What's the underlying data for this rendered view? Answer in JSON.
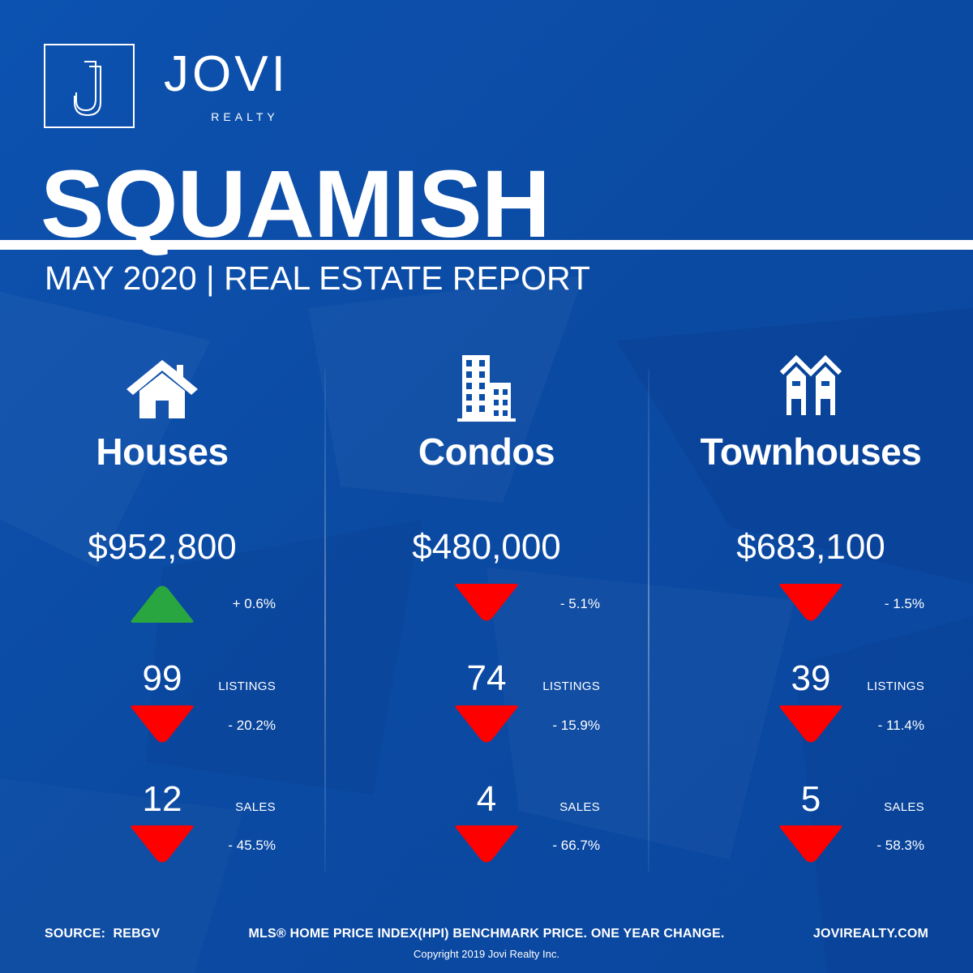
{
  "brand": {
    "name": "JOVI",
    "sub": "REALTY",
    "monogram": "J"
  },
  "title": "SQUAMISH",
  "subtitle": "MAY 2020 | REAL ESTATE REPORT",
  "colors": {
    "background": "#0d4fa8",
    "up": "#2aa640",
    "down": "#ff0000"
  },
  "columns": [
    {
      "icon": "house-icon",
      "label": "Houses",
      "price": "$952,800",
      "price_change": "+ 0.6%",
      "price_trend": "up",
      "listings": "99",
      "listings_label": "LISTINGS",
      "listings_change": "- 20.2%",
      "listings_trend": "down",
      "sales": "12",
      "sales_label": "SALES",
      "sales_change": "- 45.5%",
      "sales_trend": "down"
    },
    {
      "icon": "condo-building-icon",
      "label": "Condos",
      "price": "$480,000",
      "price_change": "- 5.1%",
      "price_trend": "down",
      "listings": "74",
      "listings_label": "LISTINGS",
      "listings_change": "- 15.9%",
      "listings_trend": "down",
      "sales": "4",
      "sales_label": "SALES",
      "sales_change": "- 66.7%",
      "sales_trend": "down"
    },
    {
      "icon": "townhouse-icon",
      "label": "Townhouses",
      "price": "$683,100",
      "price_change": "- 1.5%",
      "price_trend": "down",
      "listings": "39",
      "listings_label": "LISTINGS",
      "listings_change": "- 11.4%",
      "listings_trend": "down",
      "sales": "5",
      "sales_label": "SALES",
      "sales_change": "- 58.3%",
      "sales_trend": "down"
    }
  ],
  "footer": {
    "source": "SOURCE:  REBGV",
    "note": "MLS® HOME PRICE INDEX(HPI) BENCHMARK PRICE. ONE YEAR CHANGE.",
    "website": "JOVIREALTY.COM",
    "copyright": "Copyright 2019 Jovi Realty Inc."
  }
}
